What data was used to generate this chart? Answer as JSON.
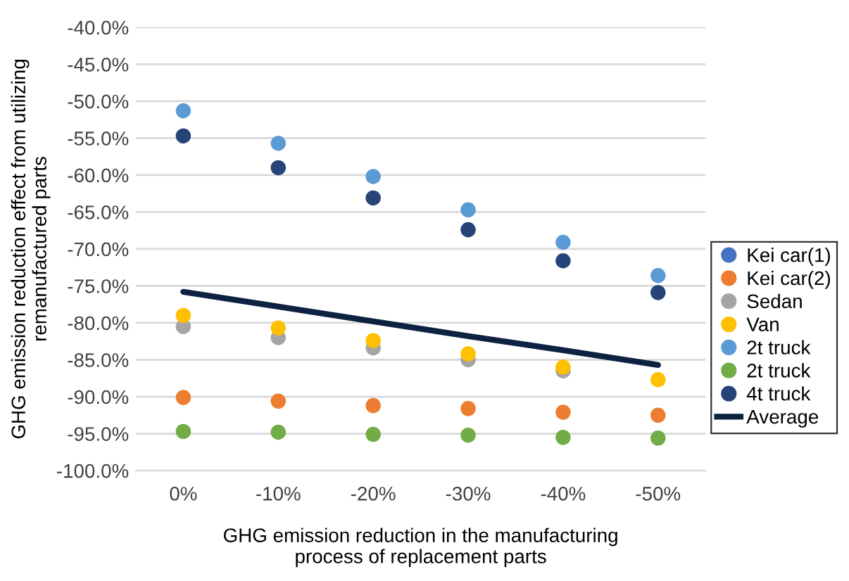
{
  "chart_data": {
    "type": "scatter",
    "xlabel": "GHG emission reduction in the manufacturing\nprocess of replacement parts",
    "ylabel": "GHG emission reduction effect from utilizing\nremanufactured parts",
    "categories": [
      "0%",
      "-10%",
      "-20%",
      "-30%",
      "-40%",
      "-50%"
    ],
    "series": [
      {
        "name": "Kei car(1)",
        "color": "#4472c4",
        "values": [
          null,
          null,
          null,
          null,
          null,
          null
        ]
      },
      {
        "name": "Kei car(2)",
        "color": "#ed7d31",
        "values": [
          -90.1,
          -90.6,
          -91.2,
          -91.6,
          -92.1,
          -92.5
        ]
      },
      {
        "name": "Sedan",
        "color": "#a5a5a5",
        "values": [
          -80.5,
          -82.0,
          -83.4,
          -85.0,
          -86.5,
          null
        ]
      },
      {
        "name": "Van",
        "color": "#ffc000",
        "values": [
          -79.0,
          -80.7,
          -82.4,
          -84.2,
          -86.0,
          -87.7
        ]
      },
      {
        "name": "2t truck",
        "color": "#5b9bd5",
        "values": [
          -51.3,
          -55.7,
          -60.2,
          -64.7,
          -69.1,
          -73.6
        ]
      },
      {
        "name": "2t truck",
        "color": "#70ad47",
        "values": [
          -94.7,
          -94.8,
          -95.1,
          -95.2,
          -95.5,
          -95.6
        ]
      },
      {
        "name": "4t truck",
        "color": "#264478",
        "values": [
          -54.7,
          -59.0,
          -63.1,
          -67.4,
          -71.6,
          -75.9
        ]
      },
      {
        "name": "Average",
        "type": "line",
        "marker": "none",
        "color": "#0d2240",
        "values": [
          -75.8,
          -77.8,
          -79.8,
          -81.8,
          -83.7,
          -85.7
        ]
      }
    ],
    "ylim": [
      -100,
      -40
    ],
    "yticks": [
      {
        "value": -40,
        "label": "-40.0%"
      },
      {
        "value": -45,
        "label": "-45.0%"
      },
      {
        "value": -50,
        "label": "-50.0%"
      },
      {
        "value": -55,
        "label": "-55.0%"
      },
      {
        "value": -60,
        "label": "-60.0%"
      },
      {
        "value": -65,
        "label": "-65.0%"
      },
      {
        "value": -70,
        "label": "-70.0%"
      },
      {
        "value": -75,
        "label": "-75.0%"
      },
      {
        "value": -80,
        "label": "-80.0%"
      },
      {
        "value": -85,
        "label": "-85.0%"
      },
      {
        "value": -90,
        "label": "-90.0%"
      },
      {
        "value": -95,
        "label": "-95.0%"
      },
      {
        "value": -100,
        "label": "-100.0%"
      }
    ],
    "grid": "y",
    "legend": "right",
    "marker": "circle"
  }
}
